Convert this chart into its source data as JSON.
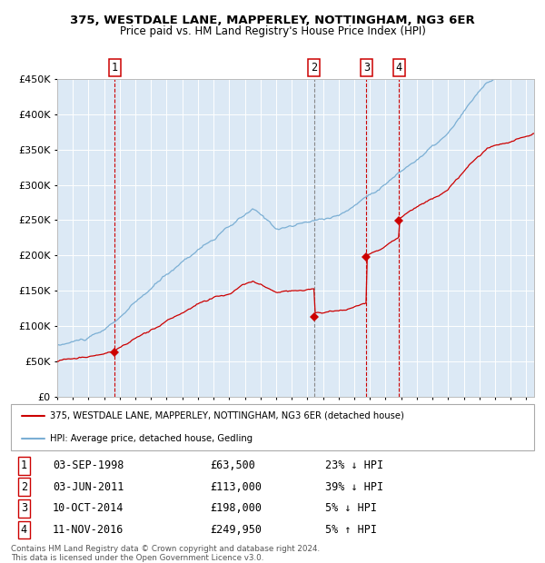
{
  "title1": "375, WESTDALE LANE, MAPPERLEY, NOTTINGHAM, NG3 6ER",
  "title2": "Price paid vs. HM Land Registry's House Price Index (HPI)",
  "background_color": "#ffffff",
  "plot_bg_color": "#dce9f5",
  "red_line_color": "#cc0000",
  "blue_line_color": "#7bafd4",
  "grid_color": "#ffffff",
  "sale_dates": [
    1998.67,
    2011.42,
    2014.78,
    2016.86
  ],
  "sale_prices": [
    63500,
    113000,
    198000,
    249950
  ],
  "sale_labels_info": [
    {
      "num": "1",
      "date": "03-SEP-1998",
      "price": "£63,500",
      "pct": "23% ↓ HPI"
    },
    {
      "num": "2",
      "date": "03-JUN-2011",
      "price": "£113,000",
      "pct": "39% ↓ HPI"
    },
    {
      "num": "3",
      "date": "10-OCT-2014",
      "price": "£198,000",
      "pct": "5% ↓ HPI"
    },
    {
      "num": "4",
      "date": "11-NOV-2016",
      "price": "£249,950",
      "pct": "5% ↑ HPI"
    }
  ],
  "legend_line1": "375, WESTDALE LANE, MAPPERLEY, NOTTINGHAM, NG3 6ER (detached house)",
  "legend_line2": "HPI: Average price, detached house, Gedling",
  "footer1": "Contains HM Land Registry data © Crown copyright and database right 2024.",
  "footer2": "This data is licensed under the Open Government Licence v3.0.",
  "ylim": [
    0,
    450000
  ],
  "xlim_start": 1995.0,
  "xlim_end": 2025.5
}
